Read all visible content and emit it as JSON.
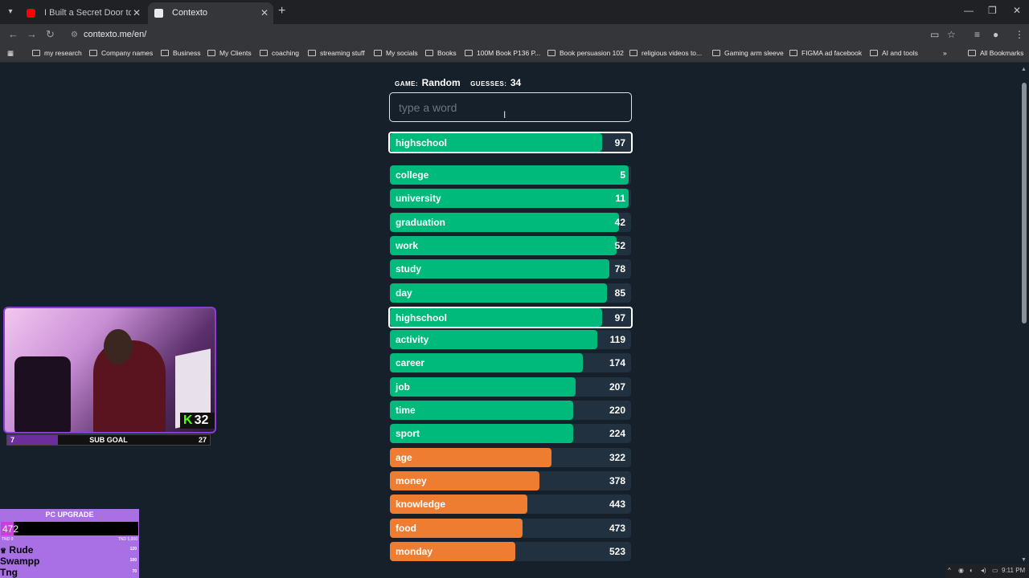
{
  "browser": {
    "tabs": [
      {
        "title": "I Built a Secret Door to Trick my..",
        "icon": "youtube-icon"
      },
      {
        "title": "Contexto",
        "icon": "contexto-icon"
      }
    ],
    "url": "contexto.me/en/",
    "bookmarks": [
      "my research",
      "Company names",
      "Business",
      "My Clients",
      "coaching",
      "streaming stuff",
      "My socials",
      "Books",
      "100M Book P136 P...",
      "Book persuasion 102",
      "religious videos to...",
      "Gaming arm sleeve",
      "FIGMA ad facebook",
      "AI and tools"
    ],
    "all_bookmarks": "All Bookmarks"
  },
  "game": {
    "game_label": "GAME:",
    "game_value": "Random",
    "guesses_label": "GUESSES:",
    "guesses_value": "34",
    "input_placeholder": "type a word",
    "last_guess": {
      "word": "highschool",
      "rank": "97",
      "progress": 0.88
    },
    "guesses": [
      {
        "word": "college",
        "rank": "5",
        "progress": 0.99
      },
      {
        "word": "university",
        "rank": "11",
        "progress": 0.99
      },
      {
        "word": "graduation",
        "rank": "42",
        "progress": 0.95
      },
      {
        "word": "work",
        "rank": "52",
        "progress": 0.94
      },
      {
        "word": "study",
        "rank": "78",
        "progress": 0.91
      },
      {
        "word": "day",
        "rank": "85",
        "progress": 0.9
      },
      {
        "word": "highschool",
        "rank": "97",
        "progress": 0.88
      },
      {
        "word": "activity",
        "rank": "119",
        "progress": 0.86
      },
      {
        "word": "career",
        "rank": "174",
        "progress": 0.8
      },
      {
        "word": "job",
        "rank": "207",
        "progress": 0.77
      },
      {
        "word": "time",
        "rank": "220",
        "progress": 0.76
      },
      {
        "word": "sport",
        "rank": "224",
        "progress": 0.76
      },
      {
        "word": "age",
        "rank": "322",
        "progress": 0.67
      },
      {
        "word": "money",
        "rank": "378",
        "progress": 0.62
      },
      {
        "word": "knowledge",
        "rank": "443",
        "progress": 0.57
      },
      {
        "word": "food",
        "rank": "473",
        "progress": 0.55
      },
      {
        "word": "monday",
        "rank": "523",
        "progress": 0.52
      }
    ],
    "colors": {
      "close": "#00ba7c",
      "medium": "#ef7d31",
      "track": "#22313f"
    }
  },
  "overlay": {
    "kick_count": "32",
    "sub_goal": {
      "label": "SUB GOAL",
      "current": "7",
      "target": "27"
    },
    "pc_upgrade": {
      "title": "PC UPGRADE",
      "amount": "472",
      "min_label": "TND 0",
      "max_label": "TND 5,000",
      "progress": 0.094,
      "donors": [
        {
          "name": "Rude",
          "amount": "120"
        },
        {
          "name": "Swampp",
          "amount": "100"
        },
        {
          "name": "Tng",
          "amount": "70"
        }
      ]
    }
  },
  "tray": {
    "time": "9:11 PM"
  }
}
